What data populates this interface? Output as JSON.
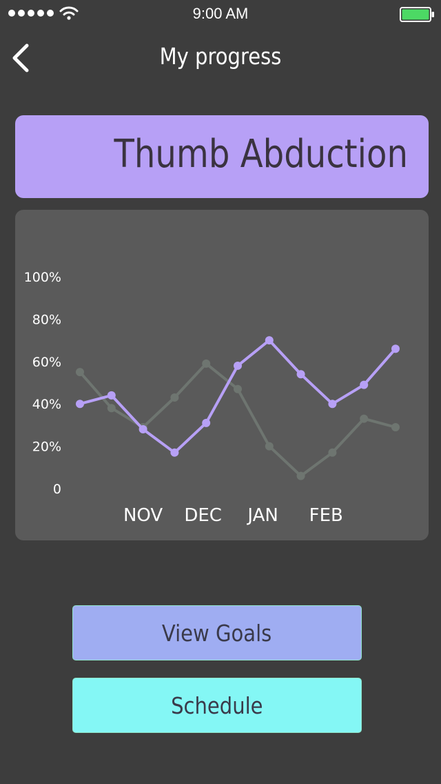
{
  "status_bar": {
    "time": "9:00 AM",
    "signal_bars": 5,
    "battery_level": 1.0,
    "battery_color": "#4cd964"
  },
  "nav": {
    "title": "My progress",
    "back_icon": "chevron-left-icon"
  },
  "exercise": {
    "title": "Thumb Abduction",
    "color": "#b7a0f6"
  },
  "chart_data": {
    "type": "line",
    "y_ticks": [
      "100%",
      "80%",
      "60%",
      "40%",
      "20%",
      "0"
    ],
    "x_tick_labels": [
      "NOV",
      "DEC",
      "JAN",
      "FEB"
    ],
    "ylim": [
      0,
      100
    ],
    "x": [
      1,
      2,
      3,
      4,
      5,
      6,
      7,
      8,
      9,
      10,
      11
    ],
    "x_tick_positions": [
      3.0,
      4.9,
      6.8,
      8.8
    ],
    "series": [
      {
        "color": "#b7a0f6",
        "values": [
          40,
          44,
          28,
          17,
          31,
          58,
          70,
          54,
          40,
          49,
          66
        ]
      },
      {
        "color": "#6e7570",
        "values": [
          55,
          38,
          29,
          43,
          59,
          47,
          20,
          6,
          17,
          33,
          29
        ]
      }
    ],
    "grid": false,
    "legend": "none"
  },
  "actions": {
    "view_goals_label": "View Goals",
    "schedule_label": "Schedule"
  },
  "colors": {
    "background": "#3d3d3d",
    "card": "#5a5a5a",
    "view_goals": "#9fadf2",
    "schedule": "#84f7f5"
  }
}
